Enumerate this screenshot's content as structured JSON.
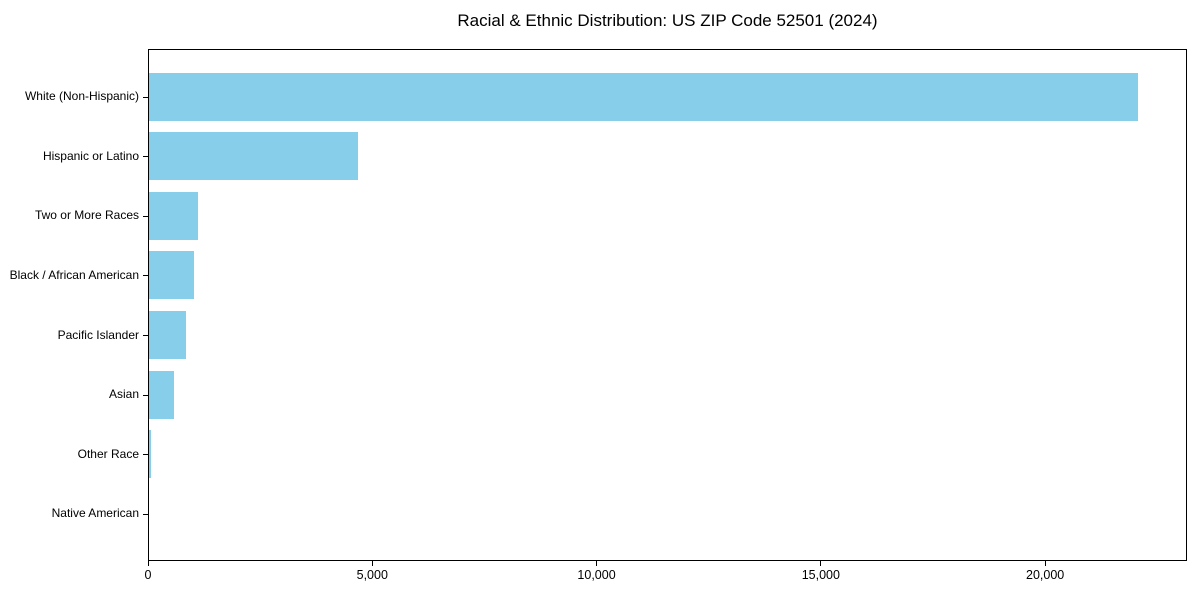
{
  "title": "Racial & Ethnic Distribution: US ZIP Code 52501 (2024)",
  "colors": {
    "bar": "#87CEEB",
    "axis": "#000000",
    "text": "#000000",
    "background": "#FFFFFF"
  },
  "chart_data": {
    "type": "bar",
    "orientation": "horizontal",
    "title": "Racial & Ethnic Distribution: US ZIP Code 52501 (2024)",
    "categories": [
      "White (Non-Hispanic)",
      "Hispanic or Latino",
      "Two or More Races",
      "Black / African American",
      "Pacific Islander",
      "Asian",
      "Other Race",
      "Native American"
    ],
    "values": [
      22060,
      4675,
      1115,
      1025,
      855,
      580,
      75,
      10
    ],
    "bar_color": "#87CEEB",
    "xlabel": "",
    "ylabel": "",
    "xlim": [
      0,
      23163
    ],
    "x_ticks": [
      0,
      5000,
      10000,
      15000,
      20000
    ],
    "x_tick_labels": [
      "0",
      "5,000",
      "10,000",
      "15,000",
      "20,000"
    ],
    "grid": false,
    "legend_position": "none"
  }
}
